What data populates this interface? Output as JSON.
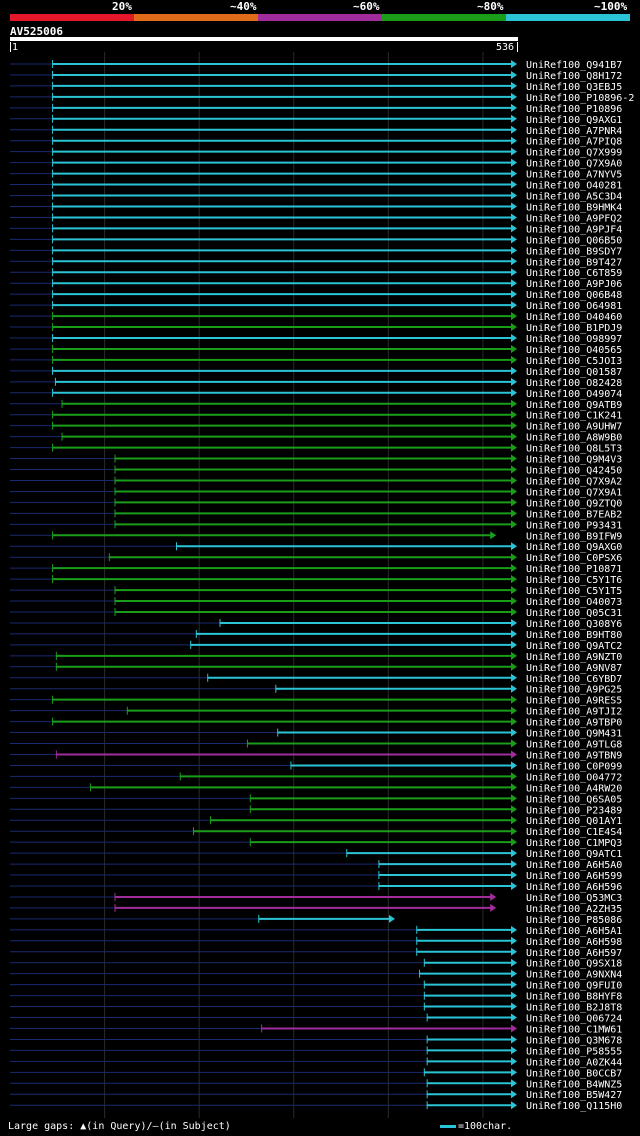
{
  "legend": {
    "colors": [
      "#e5172a",
      "#e06c1a",
      "#a12c9c",
      "#1a9e1a",
      "#2bc4d6"
    ],
    "labels": [
      "20%",
      "~40%",
      "~60%",
      "~80%",
      "~100%"
    ]
  },
  "query": {
    "name": "AV525006",
    "start": "1",
    "end": "536",
    "length": 536
  },
  "hits": [
    [
      "UniRef100_Q941B7",
      "c",
      45,
      536
    ],
    [
      "UniRef100_Q8H172",
      "c",
      45,
      536
    ],
    [
      "UniRef100_Q3EBJ5",
      "c",
      45,
      536
    ],
    [
      "UniRef100_P10896-2",
      "c",
      45,
      536
    ],
    [
      "UniRef100_P10896",
      "c",
      45,
      536
    ],
    [
      "UniRef100_Q9AXG1",
      "c",
      45,
      536
    ],
    [
      "UniRef100_A7PNR4",
      "c",
      45,
      536
    ],
    [
      "UniRef100_A7PIQ8",
      "c",
      45,
      536
    ],
    [
      "UniRef100_Q7X999",
      "c",
      45,
      536
    ],
    [
      "UniRef100_Q7X9A0",
      "c",
      45,
      536
    ],
    [
      "UniRef100_A7NYV5",
      "c",
      45,
      536
    ],
    [
      "UniRef100_O40281",
      "c",
      45,
      536
    ],
    [
      "UniRef100_A5C3D4",
      "c",
      45,
      536
    ],
    [
      "UniRef100_B9HMK4",
      "c",
      45,
      536
    ],
    [
      "UniRef100_A9PFQ2",
      "c",
      45,
      536
    ],
    [
      "UniRef100_A9PJF4",
      "c",
      45,
      536
    ],
    [
      "UniRef100_Q06B50",
      "c",
      45,
      536
    ],
    [
      "UniRef100_B9SDY7",
      "c",
      45,
      536
    ],
    [
      "UniRef100_B9T427",
      "c",
      45,
      536
    ],
    [
      "UniRef100_C6T859",
      "c",
      45,
      536
    ],
    [
      "UniRef100_A9PJ06",
      "c",
      45,
      536
    ],
    [
      "UniRef100_Q06B48",
      "c",
      45,
      536
    ],
    [
      "UniRef100_O64981",
      "c",
      45,
      536
    ],
    [
      "UniRef100_O40460",
      "g",
      45,
      536
    ],
    [
      "UniRef100_B1PDJ9",
      "g",
      45,
      536
    ],
    [
      "UniRef100_O98997",
      "c",
      45,
      536
    ],
    [
      "UniRef100_O40565",
      "g",
      45,
      536
    ],
    [
      "UniRef100_C5JOI3",
      "g",
      45,
      536
    ],
    [
      "UniRef100_Q01587",
      "c",
      45,
      536
    ],
    [
      "UniRef100_O82428",
      "c",
      48,
      536
    ],
    [
      "UniRef100_O49074",
      "c",
      45,
      536
    ],
    [
      "UniRef100_Q9ATB9",
      "g",
      55,
      536
    ],
    [
      "UniRef100_C1K241",
      "g",
      45,
      536
    ],
    [
      "UniRef100_A9UHW7",
      "g",
      45,
      536
    ],
    [
      "UniRef100_A8W9B0",
      "g",
      55,
      536
    ],
    [
      "UniRef100_Q8L5T3",
      "g",
      45,
      536
    ],
    [
      "UniRef100_Q9M4V3",
      "g",
      111,
      536
    ],
    [
      "UniRef100_Q42450",
      "g",
      111,
      536
    ],
    [
      "UniRef100_Q7X9A2",
      "g",
      111,
      536
    ],
    [
      "UniRef100_Q7X9A1",
      "g",
      111,
      536
    ],
    [
      "UniRef100_Q9ZTQ0",
      "g",
      111,
      536
    ],
    [
      "UniRef100_B7EAB2",
      "g",
      111,
      536
    ],
    [
      "UniRef100_P93431",
      "g",
      111,
      536
    ],
    [
      "UniRef100_B9IFW9",
      "g",
      45,
      514
    ],
    [
      "UniRef100_Q9AXG0",
      "c",
      176,
      536
    ],
    [
      "UniRef100_C0PSX6",
      "g",
      105,
      536
    ],
    [
      "UniRef100_P10871",
      "g",
      45,
      536
    ],
    [
      "UniRef100_C5Y1T6",
      "g",
      45,
      536
    ],
    [
      "UniRef100_C5Y1T5",
      "g",
      111,
      536
    ],
    [
      "UniRef100_O40073",
      "g",
      111,
      536
    ],
    [
      "UniRef100_Q05C31",
      "g",
      111,
      536
    ],
    [
      "UniRef100_Q308Y6",
      "c",
      222,
      536
    ],
    [
      "UniRef100_B9HT80",
      "c",
      197,
      536
    ],
    [
      "UniRef100_Q9ATC2",
      "c",
      191,
      536
    ],
    [
      "UniRef100_A9NZT0",
      "g",
      49,
      536
    ],
    [
      "UniRef100_A9NV87",
      "g",
      49,
      536
    ],
    [
      "UniRef100_C6YBD7",
      "c",
      209,
      536
    ],
    [
      "UniRef100_A9PG25",
      "c",
      281,
      536
    ],
    [
      "UniRef100_A9RES5",
      "g",
      45,
      536
    ],
    [
      "UniRef100_A9TJI2",
      "g",
      124,
      536
    ],
    [
      "UniRef100_A9TBP0",
      "g",
      45,
      536
    ],
    [
      "UniRef100_Q9M431",
      "c",
      283,
      536
    ],
    [
      "UniRef100_A9TLG8",
      "g",
      251,
      536
    ],
    [
      "UniRef100_A9TBN9",
      "m",
      49,
      536
    ],
    [
      "UniRef100_C0P099",
      "c",
      297,
      536
    ],
    [
      "UniRef100_O04772",
      "g",
      180,
      536
    ],
    [
      "UniRef100_A4RW20",
      "g",
      85,
      536
    ],
    [
      "UniRef100_Q6SA05",
      "g",
      254,
      536
    ],
    [
      "UniRef100_P23489",
      "g",
      254,
      536
    ],
    [
      "UniRef100_Q01AY1",
      "g",
      212,
      536
    ],
    [
      "UniRef100_C1E4S4",
      "g",
      194,
      536
    ],
    [
      "UniRef100_C1MPQ3",
      "g",
      254,
      536
    ],
    [
      "UniRef100_Q9ATC1",
      "c",
      356,
      536
    ],
    [
      "UniRef100_A6H5A0",
      "c",
      390,
      536
    ],
    [
      "UniRef100_A6H599",
      "c",
      390,
      536
    ],
    [
      "UniRef100_A6H596",
      "c",
      390,
      536
    ],
    [
      "UniRef100_Q53MC3",
      "m",
      111,
      514
    ],
    [
      "UniRef100_A2ZH35",
      "m",
      111,
      514
    ],
    [
      "UniRef100_P85086",
      "c",
      263,
      407
    ],
    [
      "UniRef100_A6H5A1",
      "c",
      430,
      536
    ],
    [
      "UniRef100_A6H598",
      "c",
      430,
      536
    ],
    [
      "UniRef100_A6H597",
      "c",
      430,
      536
    ],
    [
      "UniRef100_Q9SX18",
      "c",
      438,
      536
    ],
    [
      "UniRef100_A9NXN4",
      "c",
      433,
      536
    ],
    [
      "UniRef100_Q9FUI0",
      "c",
      438,
      536
    ],
    [
      "UniRef100_B8HYF8",
      "c",
      438,
      536
    ],
    [
      "UniRef100_B2J8T8",
      "c",
      438,
      536
    ],
    [
      "UniRef100_Q06724",
      "c",
      441,
      536
    ],
    [
      "UniRef100_C1MW61",
      "m",
      266,
      536
    ],
    [
      "UniRef100_Q3M678",
      "c",
      441,
      536
    ],
    [
      "UniRef100_P58555",
      "c",
      441,
      536
    ],
    [
      "UniRef100_A0ZK44",
      "c",
      441,
      536
    ],
    [
      "UniRef100_B0CCB7",
      "c",
      438,
      536
    ],
    [
      "UniRef100_B4WNZ5",
      "c",
      441,
      536
    ],
    [
      "UniRef100_B5W427",
      "c",
      441,
      536
    ],
    [
      "UniRef100_Q115H0",
      "c",
      441,
      536
    ]
  ],
  "footer": {
    "gaps_label": "Large gaps: ",
    "query_gap": "(in Query)",
    "separator": "/",
    "subject_gap": "(in Subject)",
    "scale_label": "=100char."
  }
}
